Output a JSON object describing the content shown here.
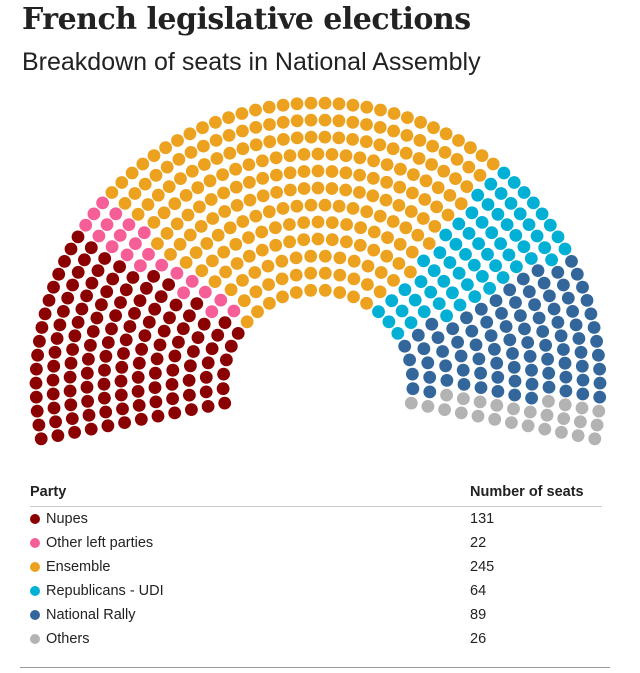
{
  "title": "French legislative elections",
  "subtitle": "Breakdown of seats in National Assembly",
  "table": {
    "header_party": "Party",
    "header_seats": "Number of seats"
  },
  "chart_data": {
    "type": "parliament",
    "total_seats": 577,
    "series": [
      {
        "name": "Nupes",
        "value": 131,
        "color": "#8b0000"
      },
      {
        "name": "Other left parties",
        "value": 22,
        "color": "#f65e98"
      },
      {
        "name": "Ensemble",
        "value": 245,
        "color": "#eca21f"
      },
      {
        "name": "Republicans - UDI",
        "value": 64,
        "color": "#01b0d4"
      },
      {
        "name": "National Rally",
        "value": 89,
        "color": "#33679c"
      },
      {
        "name": "Others",
        "value": 26,
        "color": "#b3b3b3"
      }
    ]
  }
}
